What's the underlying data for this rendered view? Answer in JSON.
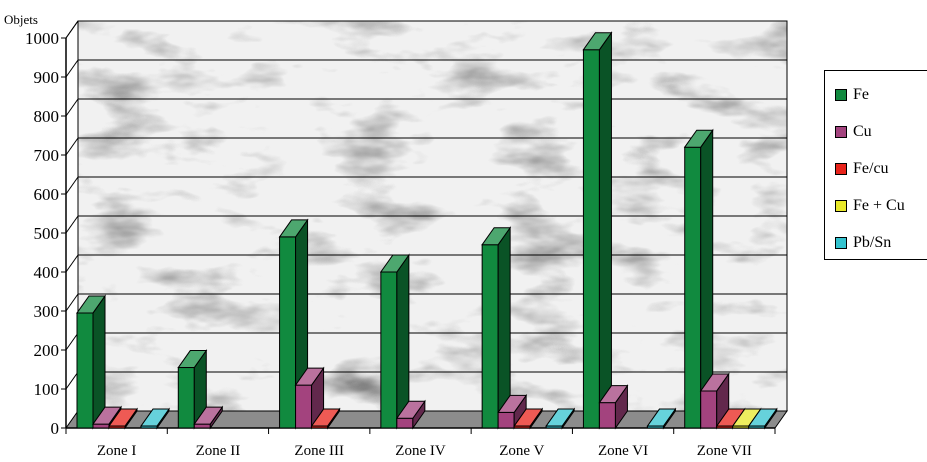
{
  "chart_data": {
    "type": "bar",
    "variant": "3d-clustered",
    "ylabel": "Objets",
    "ylim": [
      0,
      1000
    ],
    "yticks": [
      "0",
      "100",
      "200",
      "300",
      "400",
      "500",
      "600",
      "700",
      "800",
      "900",
      "1000"
    ],
    "grid": true,
    "legend_position": "right",
    "categories": [
      "Zone I",
      "Zone II",
      "Zone III",
      "Zone IV",
      "Zone V",
      "Zone VI",
      "Zone VII"
    ],
    "series": [
      {
        "name": "Fe",
        "color": "#118a3f",
        "values": [
          295,
          155,
          490,
          400,
          470,
          970,
          720
        ]
      },
      {
        "name": "Cu",
        "color": "#a3437e",
        "values": [
          10,
          10,
          110,
          25,
          40,
          65,
          95
        ]
      },
      {
        "name": "Fe/cu",
        "color": "#e8231b",
        "values": [
          5,
          0,
          5,
          0,
          5,
          0,
          5
        ]
      },
      {
        "name": "Fe + Cu",
        "color": "#e8e82a",
        "values": [
          0,
          0,
          0,
          0,
          0,
          0,
          5
        ]
      },
      {
        "name": "Pb/Sn",
        "color": "#33c3cf",
        "values": [
          5,
          0,
          0,
          0,
          5,
          5,
          5
        ]
      }
    ]
  }
}
